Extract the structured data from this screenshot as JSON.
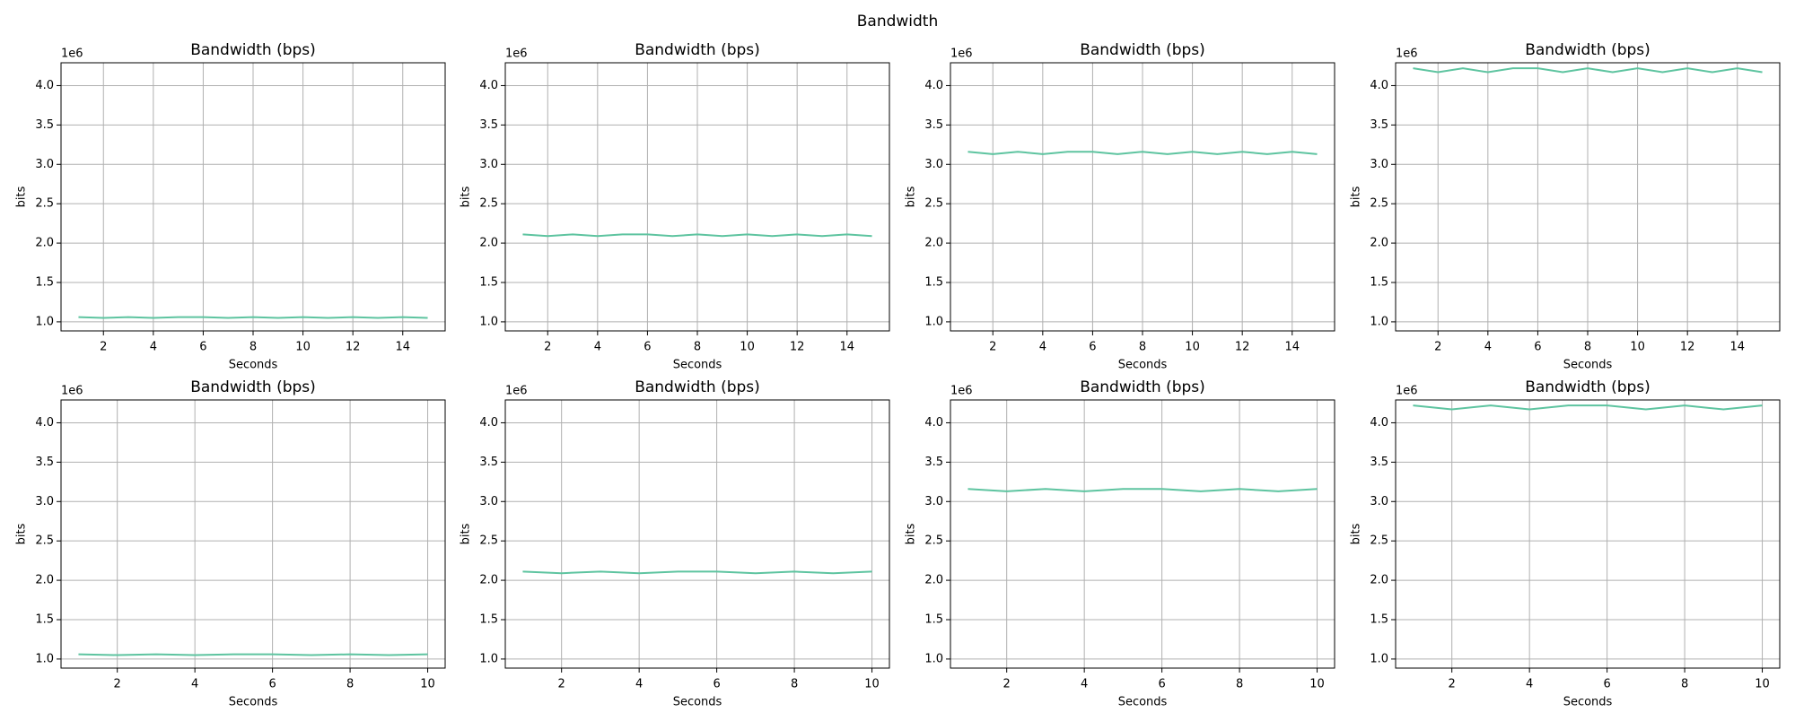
{
  "title": "Bandwidth",
  "chart_data": [
    {
      "type": "line",
      "title": "Bandwidth (bps)",
      "xlabel": "Seconds",
      "ylabel": "bits",
      "y_offset_label": "1e6",
      "x": [
        1,
        2,
        3,
        4,
        5,
        6,
        7,
        8,
        9,
        10,
        11,
        12,
        13,
        14,
        15
      ],
      "values": [
        1060000,
        1050000,
        1060000,
        1050000,
        1060000,
        1060000,
        1050000,
        1060000,
        1050000,
        1060000,
        1050000,
        1060000,
        1050000,
        1060000,
        1050000
      ],
      "color": "#5ec4a0",
      "xlim": [
        0.3,
        15.7
      ],
      "xticks": [
        2,
        4,
        6,
        8,
        10,
        12,
        14
      ],
      "ylim": [
        885000,
        4290000
      ],
      "yticks": [
        {
          "value": 1000000,
          "label": "1.0"
        },
        {
          "value": 1500000,
          "label": "1.5"
        },
        {
          "value": 2000000,
          "label": "2.0"
        },
        {
          "value": 2500000,
          "label": "2.5"
        },
        {
          "value": 3000000,
          "label": "3.0"
        },
        {
          "value": 3500000,
          "label": "3.5"
        },
        {
          "value": 4000000,
          "label": "4.0"
        }
      ],
      "grid": true
    },
    {
      "type": "line",
      "title": "Bandwidth (bps)",
      "xlabel": "Seconds",
      "ylabel": "bits",
      "y_offset_label": "1e6",
      "x": [
        1,
        2,
        3,
        4,
        5,
        6,
        7,
        8,
        9,
        10,
        11,
        12,
        13,
        14,
        15
      ],
      "values": [
        2110000,
        2090000,
        2110000,
        2090000,
        2110000,
        2110000,
        2090000,
        2110000,
        2090000,
        2110000,
        2090000,
        2110000,
        2090000,
        2110000,
        2090000
      ],
      "color": "#5ec4a0",
      "xlim": [
        0.3,
        15.7
      ],
      "xticks": [
        2,
        4,
        6,
        8,
        10,
        12,
        14
      ],
      "ylim": [
        885000,
        4290000
      ],
      "yticks": [
        {
          "value": 1000000,
          "label": "1.0"
        },
        {
          "value": 1500000,
          "label": "1.5"
        },
        {
          "value": 2000000,
          "label": "2.0"
        },
        {
          "value": 2500000,
          "label": "2.5"
        },
        {
          "value": 3000000,
          "label": "3.0"
        },
        {
          "value": 3500000,
          "label": "3.5"
        },
        {
          "value": 4000000,
          "label": "4.0"
        }
      ],
      "grid": true
    },
    {
      "type": "line",
      "title": "Bandwidth (bps)",
      "xlabel": "Seconds",
      "ylabel": "bits",
      "y_offset_label": "1e6",
      "x": [
        1,
        2,
        3,
        4,
        5,
        6,
        7,
        8,
        9,
        10,
        11,
        12,
        13,
        14,
        15
      ],
      "values": [
        3160000,
        3130000,
        3160000,
        3130000,
        3160000,
        3160000,
        3130000,
        3160000,
        3130000,
        3160000,
        3130000,
        3160000,
        3130000,
        3160000,
        3130000
      ],
      "color": "#5ec4a0",
      "xlim": [
        0.3,
        15.7
      ],
      "xticks": [
        2,
        4,
        6,
        8,
        10,
        12,
        14
      ],
      "ylim": [
        885000,
        4290000
      ],
      "yticks": [
        {
          "value": 1000000,
          "label": "1.0"
        },
        {
          "value": 1500000,
          "label": "1.5"
        },
        {
          "value": 2000000,
          "label": "2.0"
        },
        {
          "value": 2500000,
          "label": "2.5"
        },
        {
          "value": 3000000,
          "label": "3.0"
        },
        {
          "value": 3500000,
          "label": "3.5"
        },
        {
          "value": 4000000,
          "label": "4.0"
        }
      ],
      "grid": true
    },
    {
      "type": "line",
      "title": "Bandwidth (bps)",
      "xlabel": "Seconds",
      "ylabel": "bits",
      "y_offset_label": "1e6",
      "x": [
        1,
        2,
        3,
        4,
        5,
        6,
        7,
        8,
        9,
        10,
        11,
        12,
        13,
        14,
        15
      ],
      "values": [
        4220000,
        4170000,
        4220000,
        4170000,
        4220000,
        4220000,
        4170000,
        4220000,
        4170000,
        4220000,
        4170000,
        4220000,
        4170000,
        4220000,
        4170000
      ],
      "color": "#5ec4a0",
      "xlim": [
        0.3,
        15.7
      ],
      "xticks": [
        2,
        4,
        6,
        8,
        10,
        12,
        14
      ],
      "ylim": [
        885000,
        4290000
      ],
      "yticks": [
        {
          "value": 1000000,
          "label": "1.0"
        },
        {
          "value": 1500000,
          "label": "1.5"
        },
        {
          "value": 2000000,
          "label": "2.0"
        },
        {
          "value": 2500000,
          "label": "2.5"
        },
        {
          "value": 3000000,
          "label": "3.0"
        },
        {
          "value": 3500000,
          "label": "3.5"
        },
        {
          "value": 4000000,
          "label": "4.0"
        }
      ],
      "grid": true
    },
    {
      "type": "line",
      "title": "Bandwidth (bps)",
      "xlabel": "Seconds",
      "ylabel": "bits",
      "y_offset_label": "1e6",
      "x": [
        1,
        2,
        3,
        4,
        5,
        6,
        7,
        8,
        9,
        10
      ],
      "values": [
        1060000,
        1050000,
        1060000,
        1050000,
        1060000,
        1060000,
        1050000,
        1060000,
        1050000,
        1060000
      ],
      "color": "#5ec4a0",
      "xlim": [
        0.55,
        10.45
      ],
      "xticks": [
        2,
        4,
        6,
        8,
        10
      ],
      "ylim": [
        885000,
        4290000
      ],
      "yticks": [
        {
          "value": 1000000,
          "label": "1.0"
        },
        {
          "value": 1500000,
          "label": "1.5"
        },
        {
          "value": 2000000,
          "label": "2.0"
        },
        {
          "value": 2500000,
          "label": "2.5"
        },
        {
          "value": 3000000,
          "label": "3.0"
        },
        {
          "value": 3500000,
          "label": "3.5"
        },
        {
          "value": 4000000,
          "label": "4.0"
        }
      ],
      "grid": true
    },
    {
      "type": "line",
      "title": "Bandwidth (bps)",
      "xlabel": "Seconds",
      "ylabel": "bits",
      "y_offset_label": "1e6",
      "x": [
        1,
        2,
        3,
        4,
        5,
        6,
        7,
        8,
        9,
        10
      ],
      "values": [
        2110000,
        2090000,
        2110000,
        2090000,
        2110000,
        2110000,
        2090000,
        2110000,
        2090000,
        2110000
      ],
      "color": "#5ec4a0",
      "xlim": [
        0.55,
        10.45
      ],
      "xticks": [
        2,
        4,
        6,
        8,
        10
      ],
      "ylim": [
        885000,
        4290000
      ],
      "yticks": [
        {
          "value": 1000000,
          "label": "1.0"
        },
        {
          "value": 1500000,
          "label": "1.5"
        },
        {
          "value": 2000000,
          "label": "2.0"
        },
        {
          "value": 2500000,
          "label": "2.5"
        },
        {
          "value": 3000000,
          "label": "3.0"
        },
        {
          "value": 3500000,
          "label": "3.5"
        },
        {
          "value": 4000000,
          "label": "4.0"
        }
      ],
      "grid": true
    },
    {
      "type": "line",
      "title": "Bandwidth (bps)",
      "xlabel": "Seconds",
      "ylabel": "bits",
      "y_offset_label": "1e6",
      "x": [
        1,
        2,
        3,
        4,
        5,
        6,
        7,
        8,
        9,
        10
      ],
      "values": [
        3160000,
        3130000,
        3160000,
        3130000,
        3160000,
        3160000,
        3130000,
        3160000,
        3130000,
        3160000
      ],
      "color": "#5ec4a0",
      "xlim": [
        0.55,
        10.45
      ],
      "xticks": [
        2,
        4,
        6,
        8,
        10
      ],
      "ylim": [
        885000,
        4290000
      ],
      "yticks": [
        {
          "value": 1000000,
          "label": "1.0"
        },
        {
          "value": 1500000,
          "label": "1.5"
        },
        {
          "value": 2000000,
          "label": "2.0"
        },
        {
          "value": 2500000,
          "label": "2.5"
        },
        {
          "value": 3000000,
          "label": "3.0"
        },
        {
          "value": 3500000,
          "label": "3.5"
        },
        {
          "value": 4000000,
          "label": "4.0"
        }
      ],
      "grid": true
    },
    {
      "type": "line",
      "title": "Bandwidth (bps)",
      "xlabel": "Seconds",
      "ylabel": "bits",
      "y_offset_label": "1e6",
      "x": [
        1,
        2,
        3,
        4,
        5,
        6,
        7,
        8,
        9,
        10
      ],
      "values": [
        4220000,
        4170000,
        4220000,
        4170000,
        4220000,
        4220000,
        4170000,
        4220000,
        4170000,
        4220000
      ],
      "color": "#5ec4a0",
      "xlim": [
        0.55,
        10.45
      ],
      "xticks": [
        2,
        4,
        6,
        8,
        10
      ],
      "ylim": [
        885000,
        4290000
      ],
      "yticks": [
        {
          "value": 1000000,
          "label": "1.0"
        },
        {
          "value": 1500000,
          "label": "1.5"
        },
        {
          "value": 2000000,
          "label": "2.0"
        },
        {
          "value": 2500000,
          "label": "2.5"
        },
        {
          "value": 3000000,
          "label": "3.0"
        },
        {
          "value": 3500000,
          "label": "3.5"
        },
        {
          "value": 4000000,
          "label": "4.0"
        }
      ],
      "grid": true
    }
  ]
}
